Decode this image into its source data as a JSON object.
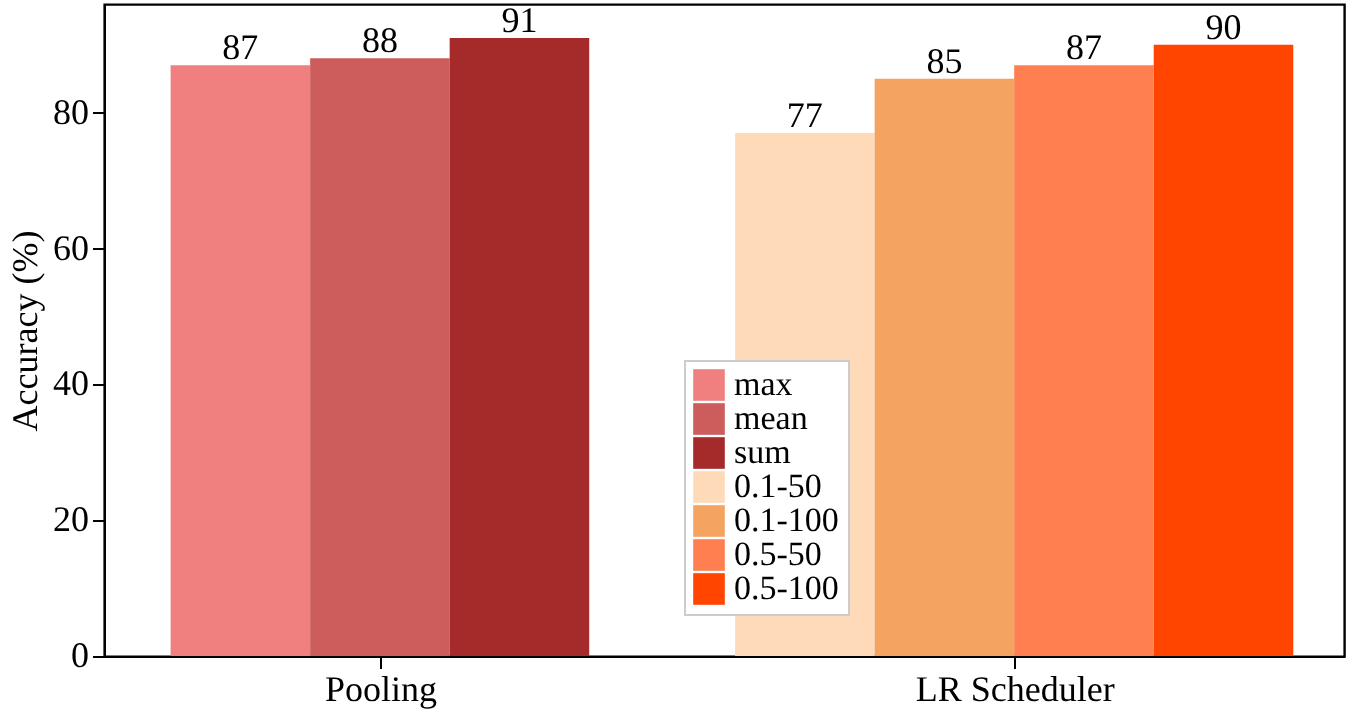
{
  "chart_data": {
    "type": "bar",
    "ylabel": "Accuracy (%)",
    "categories": [
      "Pooling",
      "LR Scheduler"
    ],
    "series": [
      {
        "name": "max",
        "color": "#f08080",
        "values": [
          87,
          null
        ]
      },
      {
        "name": "mean",
        "color": "#cd5c5c",
        "values": [
          88,
          null
        ]
      },
      {
        "name": "sum",
        "color": "#a52a2a",
        "values": [
          91,
          null
        ]
      },
      {
        "name": "0.1-50",
        "color": "#ffdab9",
        "values": [
          null,
          77
        ]
      },
      {
        "name": "0.1-100",
        "color": "#f4a460",
        "values": [
          null,
          85
        ]
      },
      {
        "name": "0.5-50",
        "color": "#ff7f50",
        "values": [
          null,
          87
        ]
      },
      {
        "name": "0.5-100",
        "color": "#ff4500",
        "values": [
          null,
          90
        ]
      }
    ],
    "ylim": [
      0,
      96
    ],
    "yticks": [
      0,
      20,
      40,
      60,
      80
    ],
    "grid": false,
    "legend": "bottom",
    "data_labels": true
  }
}
